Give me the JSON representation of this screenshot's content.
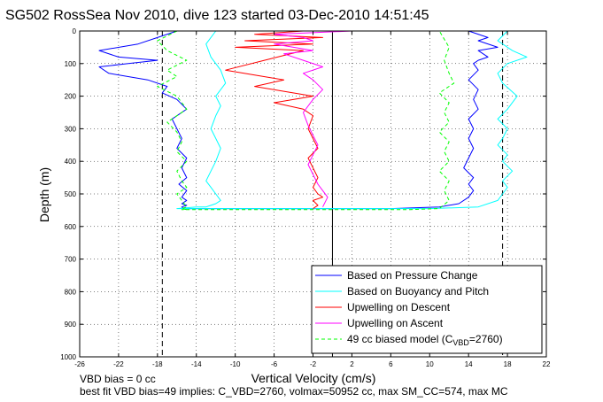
{
  "chart_data": {
    "type": "line",
    "title": "SG502 RossSea Nov 2010, dive 123 started 03-Dec-2010 14:51:45",
    "xlabel": "Vertical Velocity (cm/s)",
    "ylabel": "Depth (m)",
    "xlim": [
      -26,
      22
    ],
    "ylim": [
      0,
      1000
    ],
    "y_reversed": true,
    "grid": true,
    "legend_position": "bottom-right",
    "x_ticks": [
      -26,
      -22,
      -18,
      -14,
      -10,
      -6,
      -2,
      2,
      6,
      10,
      14,
      18,
      22
    ],
    "x_tick_labels": [
      "-26",
      "-22",
      "-18",
      "-14",
      "-10",
      "-6",
      "-2",
      "2",
      "6",
      "10",
      "14",
      "18",
      "22"
    ],
    "y_ticks": [
      0,
      100,
      200,
      300,
      400,
      500,
      600,
      700,
      800,
      900,
      1000
    ],
    "y_tick_labels": [
      "0",
      "100",
      "200",
      "300",
      "400",
      "500",
      "600",
      "700",
      "800",
      "900",
      "1000"
    ],
    "reference_lines": [
      {
        "x": 0,
        "style": "solid",
        "color": "#000000"
      },
      {
        "x": -17.5,
        "style": "dashed",
        "color": "#000000"
      },
      {
        "x": 17.5,
        "style": "dashed",
        "color": "#000000"
      }
    ],
    "legend": [
      {
        "label": "Based on Pressure Change",
        "color": "#0000ff",
        "style": "solid"
      },
      {
        "label": "Based on Buoyancy and Pitch",
        "color": "#00ffff",
        "style": "solid"
      },
      {
        "label": "Upwelling on Descent",
        "color": "#ff0000",
        "style": "solid"
      },
      {
        "label": "Upwelling on Ascent",
        "color": "#ff00ff",
        "style": "solid"
      },
      {
        "label_main": "49 cc biased model (C",
        "label_sub": "VBD",
        "label_tail": "=2760)",
        "color": "#00ff00",
        "style": "dashed"
      }
    ],
    "series": [
      {
        "name": "Based on Pressure Change",
        "color": "#0000ff",
        "x": [
          -16,
          -18,
          -20,
          -24,
          -22,
          -18,
          -21,
          -24,
          -23,
          -19,
          -17,
          -17.5,
          -16,
          -15,
          -16.5,
          -16,
          -15.5,
          -16,
          -15,
          -15.5,
          -15,
          -15.8,
          -15,
          -15.5,
          -15,
          -15.5,
          -15,
          -15.5,
          -15.3,
          -14,
          -8,
          0,
          6,
          11,
          13,
          14,
          14.5,
          14,
          14.5,
          13.5,
          14,
          14.5,
          14,
          14.5,
          14,
          15,
          14.5,
          15,
          14,
          15,
          14.5,
          15,
          16,
          15,
          17,
          15,
          16,
          14
        ],
        "y": [
          0,
          20,
          40,
          60,
          80,
          90,
          100,
          110,
          130,
          150,
          170,
          190,
          210,
          240,
          270,
          300,
          330,
          360,
          390,
          420,
          450,
          470,
          490,
          510,
          520,
          530,
          535,
          540,
          545,
          545,
          545,
          545,
          545,
          540,
          530,
          510,
          490,
          470,
          450,
          420,
          390,
          360,
          330,
          300,
          270,
          240,
          210,
          180,
          150,
          120,
          100,
          90,
          80,
          60,
          50,
          30,
          20,
          0
        ]
      },
      {
        "name": "Based on Buoyancy and Pitch",
        "color": "#00ffff",
        "x": [
          -12,
          -13,
          -12.5,
          -11.5,
          -11,
          -12,
          -11.5,
          -12,
          -12.5,
          -12,
          -11.5,
          -12,
          -12.5,
          -13,
          -12.5,
          -12,
          -11.5,
          -12,
          -12.5,
          -13,
          -14,
          -16,
          -15,
          -12,
          -6,
          2,
          10,
          15,
          17,
          17.5,
          18,
          17.5,
          18.5,
          17.5,
          18,
          17,
          17.5,
          18,
          17,
          18,
          19,
          17.5,
          17,
          18,
          20,
          18.5,
          17,
          18
        ],
        "y": [
          0,
          40,
          80,
          120,
          160,
          200,
          230,
          260,
          300,
          330,
          360,
          400,
          430,
          460,
          480,
          500,
          520,
          530,
          535,
          540,
          540,
          545,
          545,
          545,
          545,
          545,
          545,
          540,
          520,
          500,
          480,
          460,
          430,
          400,
          380,
          350,
          330,
          300,
          270,
          240,
          200,
          160,
          130,
          100,
          80,
          60,
          30,
          0
        ]
      },
      {
        "name": "Upwelling on Descent",
        "color": "#ff0000",
        "x": [
          -3,
          -8,
          -1,
          -9,
          -2,
          -10,
          -3,
          -7,
          -11,
          -5,
          -8,
          -2,
          -6,
          -3,
          -2,
          -2.5,
          -2,
          -1.5,
          -2.5,
          -2,
          -1.5,
          -2,
          -1.5,
          -1,
          -2,
          -1.5,
          -2
        ],
        "y": [
          0,
          10,
          20,
          30,
          40,
          50,
          60,
          90,
          120,
          150,
          170,
          200,
          220,
          240,
          260,
          300,
          330,
          360,
          390,
          420,
          450,
          480,
          500,
          510,
          520,
          535,
          545
        ]
      },
      {
        "name": "Upwelling on Ascent",
        "color": "#ff00ff",
        "x": [
          2,
          -6,
          -3,
          -2,
          -6,
          -4,
          -2,
          -5,
          -3,
          -1,
          -3,
          -2,
          -1,
          -2,
          -3,
          -2.5,
          -2,
          -1.5,
          -2,
          -2.5,
          -2,
          -1.5,
          -1,
          -0.5,
          -1
        ],
        "y": [
          0,
          10,
          20,
          30,
          40,
          50,
          60,
          70,
          90,
          110,
          130,
          150,
          180,
          210,
          250,
          290,
          320,
          350,
          380,
          410,
          440,
          470,
          490,
          510,
          540
        ]
      },
      {
        "name": "49 cc biased model (CVBD=2760)",
        "color": "#00ff00",
        "x": [
          -16,
          -18,
          -17,
          -15,
          -17,
          -16,
          -18,
          -16,
          -15,
          -17,
          -16,
          -15.5,
          -16,
          -15,
          -16,
          -15.5,
          -15,
          -16,
          -15.5,
          -15,
          -15.5,
          -15,
          -15.5,
          -15,
          -10,
          0,
          8,
          11,
          12,
          11.5,
          12,
          11,
          12,
          11.5,
          12,
          11,
          12,
          11.5,
          12,
          11,
          12.5,
          12,
          11.5,
          12,
          11
        ],
        "y": [
          0,
          30,
          60,
          90,
          120,
          140,
          170,
          200,
          240,
          280,
          310,
          340,
          370,
          400,
          430,
          460,
          480,
          500,
          520,
          540,
          545,
          548,
          548,
          548,
          548,
          548,
          548,
          545,
          520,
          490,
          460,
          430,
          400,
          370,
          340,
          310,
          280,
          250,
          220,
          190,
          160,
          130,
          90,
          50,
          0
        ]
      }
    ]
  },
  "footer": {
    "line1": "VBD bias = 0 cc",
    "line2": "best fit VBD bias=49 implies: C_VBD=2760, volmax=50952 cc, max SM_CC=574, max MC"
  }
}
